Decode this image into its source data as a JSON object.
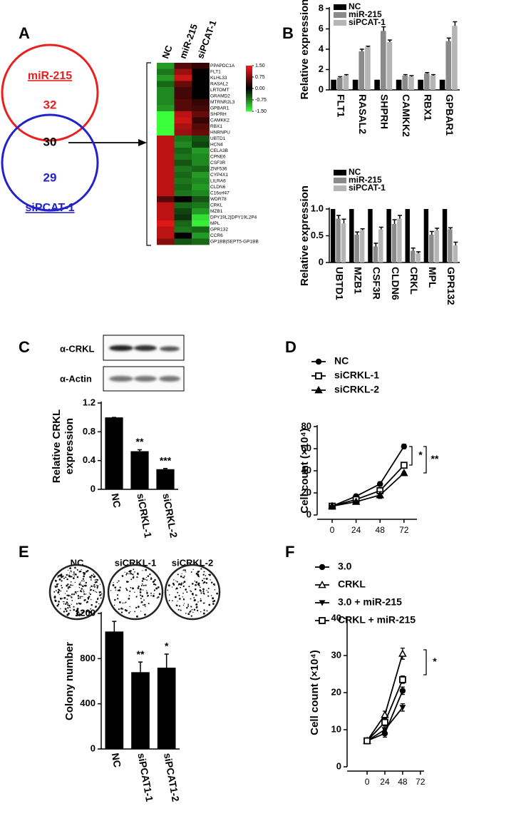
{
  "panel_letters": [
    "A",
    "B",
    "C",
    "D",
    "E",
    "F"
  ],
  "blots": {
    "labels": [
      "α-CRKL",
      "α-Actin"
    ]
  },
  "plates": {
    "labels": [
      "NC",
      "siCRKL-1",
      "siCRKL-2"
    ]
  },
  "chart_data": [
    {
      "type": "venn",
      "sets": [
        {
          "name": "miR-215",
          "color": "#e8211f",
          "only": 32
        },
        {
          "name": "siPCAT-1",
          "color": "#2222c8",
          "only": 29
        }
      ],
      "overlap": 30
    },
    {
      "type": "heatmap",
      "columns": [
        "NC",
        "miR-215",
        "siPCAT-1"
      ],
      "rows": [
        "PPAPDC1A",
        "FLT1",
        "KLHL33",
        "RASAL2",
        "LRTOMT",
        "GRAMD2",
        "MTRNR2L3",
        "GPBAR1",
        "SHPRH",
        "CAMKK2",
        "RBX1",
        "HNRNPU",
        "UBTD1",
        "HCN4",
        "CELA3B",
        "CPNE6",
        "CSF3R",
        "ZNF536",
        "CYP4X1",
        "LILRA6",
        "CLDN6",
        "C16orf47",
        "WDR78",
        "CRKL",
        "MZB1",
        "DPY19L2|DPY19L2P4",
        "MPL",
        "GPR132",
        "CCR6",
        "GP1BB|SEPT5-GP1BB"
      ],
      "values": [
        [
          -0.9,
          0.5,
          0.3
        ],
        [
          -0.7,
          0.9,
          0
        ],
        [
          -0.9,
          1.2,
          0
        ],
        [
          -0.6,
          0.6,
          0
        ],
        [
          -0.8,
          0.4,
          0
        ],
        [
          -0.8,
          0.4,
          0
        ],
        [
          -0.8,
          0.5,
          0.3
        ],
        [
          -0.9,
          0.5,
          0.4
        ],
        [
          -1.5,
          1.1,
          0.6
        ],
        [
          -1.5,
          1.2,
          0.3
        ],
        [
          -1.5,
          1,
          0.5
        ],
        [
          -1.5,
          0.9,
          0.6
        ],
        [
          1.1,
          -0.7,
          -0.5
        ],
        [
          1.1,
          -0.8,
          -0.4
        ],
        [
          1.1,
          -0.6,
          -0.9
        ],
        [
          1.1,
          -0.7,
          -0.8
        ],
        [
          1.1,
          -0.5,
          -0.8
        ],
        [
          1.1,
          -0.7,
          -0.6
        ],
        [
          1.1,
          -0.6,
          -0.9
        ],
        [
          1.1,
          -0.7,
          -0.8
        ],
        [
          1.1,
          -0.6,
          -0.9
        ],
        [
          1.1,
          -0.7,
          -0.8
        ],
        [
          0.5,
          0,
          -0.5
        ],
        [
          1.1,
          -0.6,
          -0.7
        ],
        [
          1.1,
          -0.4,
          -0.9
        ],
        [
          1.1,
          -0.3,
          -1.3
        ],
        [
          1.3,
          -0.6,
          -1.4
        ],
        [
          1.1,
          -0.7,
          -0.6
        ],
        [
          1.1,
          0,
          -0.9
        ],
        [
          0.8,
          -0.5,
          -0.6
        ]
      ],
      "zlim": [
        -1.5,
        1.5
      ],
      "zticks": [
        {
          "value": 1.5,
          "label": "1.50"
        },
        {
          "value": 0.75,
          "label": "0.75"
        },
        {
          "value": 0,
          "label": "0.00"
        },
        {
          "value": -0.75,
          "label": "-0.75"
        },
        {
          "value": -1.5,
          "label": "-1.50"
        }
      ],
      "colors": [
        "#3cff3c",
        "#000000",
        "#ff1a1a"
      ]
    },
    {
      "type": "bar",
      "ylabel": "Relative expression",
      "categories": [
        "FLT1",
        "RASAL2",
        "SHPRH",
        "CAMKK2",
        "RBX1",
        "GPBAR1"
      ],
      "series": [
        {
          "name": "NC",
          "color": "#000000",
          "values": [
            1,
            1,
            1,
            1,
            1,
            1
          ]
        },
        {
          "name": "miR-215",
          "color": "#8a8a8a",
          "values": [
            1.2,
            3.8,
            5.8,
            1.4,
            1.6,
            4.8
          ],
          "errors": [
            0.1,
            0.2,
            0.4,
            0.1,
            0.1,
            0.3
          ]
        },
        {
          "name": "siPCAT-1",
          "color": "#b5b5b5",
          "values": [
            1.4,
            4.2,
            4.7,
            1.3,
            1.4,
            6.3
          ],
          "errors": [
            0.1,
            0.1,
            0.2,
            0.1,
            0.1,
            0.4
          ]
        }
      ],
      "ylim": [
        0,
        8
      ],
      "yticks": [
        0,
        2,
        4,
        6,
        8
      ]
    },
    {
      "type": "bar",
      "ylabel": "Relative expression",
      "categories": [
        "UBTD1",
        "MZB1",
        "CSF3R",
        "CLDN6",
        "CRKL",
        "MPL",
        "GPR132"
      ],
      "series": [
        {
          "name": "NC",
          "color": "#000000",
          "values": [
            1,
            1,
            1,
            1,
            1,
            1,
            1
          ]
        },
        {
          "name": "miR-215",
          "color": "#8a8a8a",
          "values": [
            0.82,
            0.52,
            0.3,
            0.72,
            0.22,
            0.52,
            0.62
          ],
          "errors": [
            0.06,
            0.05,
            0.06,
            0.08,
            0.05,
            0.06,
            0.03
          ]
        },
        {
          "name": "siPCAT-1",
          "color": "#b5b5b5",
          "values": [
            0.73,
            0.6,
            0.62,
            0.82,
            0.17,
            0.6,
            0.32
          ],
          "errors": [
            0.08,
            0.03,
            0.04,
            0.06,
            0.03,
            0.04,
            0.06
          ]
        }
      ],
      "ylim": [
        0,
        1
      ],
      "yticks": [
        0,
        0.5,
        {
          "value": 1,
          "label": "1.0"
        }
      ]
    },
    {
      "type": "bar",
      "ylabel": [
        "Relative CRKL",
        "expression"
      ],
      "categories": [
        "NC",
        "siCRKL-1",
        "siCRKL-2"
      ],
      "series": [
        {
          "color": "#000000",
          "values": [
            1.0,
            0.53,
            0.28
          ],
          "errors": [
            0,
            0.02,
            0.01
          ]
        }
      ],
      "value_annotations": [
        null,
        "**",
        "***"
      ],
      "ylim": [
        0,
        1.2
      ],
      "yticks": [
        0,
        0.4,
        0.8,
        1.2
      ]
    },
    {
      "type": "line",
      "ylabel": "Cell count (×10⁴)",
      "x": [
        0,
        24,
        48,
        72
      ],
      "xlim": [
        -15,
        85
      ],
      "xticks": [
        0,
        24,
        48,
        72
      ],
      "series": [
        {
          "name": "NC",
          "color": "#000000",
          "marker": "circle",
          "values": [
            8,
            17,
            28,
            62
          ],
          "errors": [
            0.5,
            1,
            2,
            2
          ]
        },
        {
          "name": "siCRKL-1",
          "color": "#000000",
          "marker": "square-open",
          "values": [
            8,
            14,
            22,
            45
          ],
          "errors": [
            0.5,
            1,
            2,
            1
          ]
        },
        {
          "name": "siCRKL-2",
          "color": "#000000",
          "marker": "triangle",
          "values": [
            8,
            12,
            18,
            38
          ],
          "errors": [
            0.5,
            1,
            3,
            1
          ]
        }
      ],
      "annotations": [
        "*",
        "**"
      ],
      "ylim": [
        0,
        80
      ],
      "yticks": [
        0,
        20,
        40,
        60,
        80
      ]
    },
    {
      "type": "bar",
      "ylabel": "Colony number",
      "categories": [
        "NC",
        "siPCAT1-1",
        "siPCAT1-2"
      ],
      "series": [
        {
          "color": "#000000",
          "values": [
            1040,
            680,
            720
          ],
          "errors": [
            90,
            90,
            120
          ]
        }
      ],
      "value_annotations": [
        null,
        "**",
        "*"
      ],
      "ylim": [
        0,
        1200
      ],
      "yticks": [
        0,
        400,
        800,
        1200
      ]
    },
    {
      "type": "line",
      "ylabel": "Cell count (×10⁴)",
      "x": [
        0,
        24,
        48
      ],
      "xlim": [
        -27,
        77
      ],
      "xticks": [
        0,
        24,
        48,
        72
      ],
      "series": [
        {
          "name": "3.0",
          "color": "#000000",
          "marker": "circle",
          "values": [
            7,
            9,
            20.5
          ],
          "errors": [
            0.3,
            1,
            1
          ]
        },
        {
          "name": "CRKL",
          "color": "#000000",
          "marker": "triangle-open",
          "values": [
            7,
            14,
            30.5
          ],
          "errors": [
            0.3,
            1,
            1.5
          ]
        },
        {
          "name": "3.0 + miR-215",
          "color": "#000000",
          "marker": "triangle-down",
          "values": [
            7,
            10,
            16
          ],
          "errors": [
            0.3,
            1,
            1
          ]
        },
        {
          "name": "CRKL + miR-215",
          "color": "#000000",
          "marker": "square-open",
          "values": [
            7,
            12,
            23.5
          ],
          "errors": [
            0.3,
            1,
            1
          ]
        }
      ],
      "annotations": [
        "*"
      ],
      "ylim": [
        0,
        40
      ],
      "yticks": [
        0,
        10,
        20,
        30,
        40
      ]
    }
  ]
}
